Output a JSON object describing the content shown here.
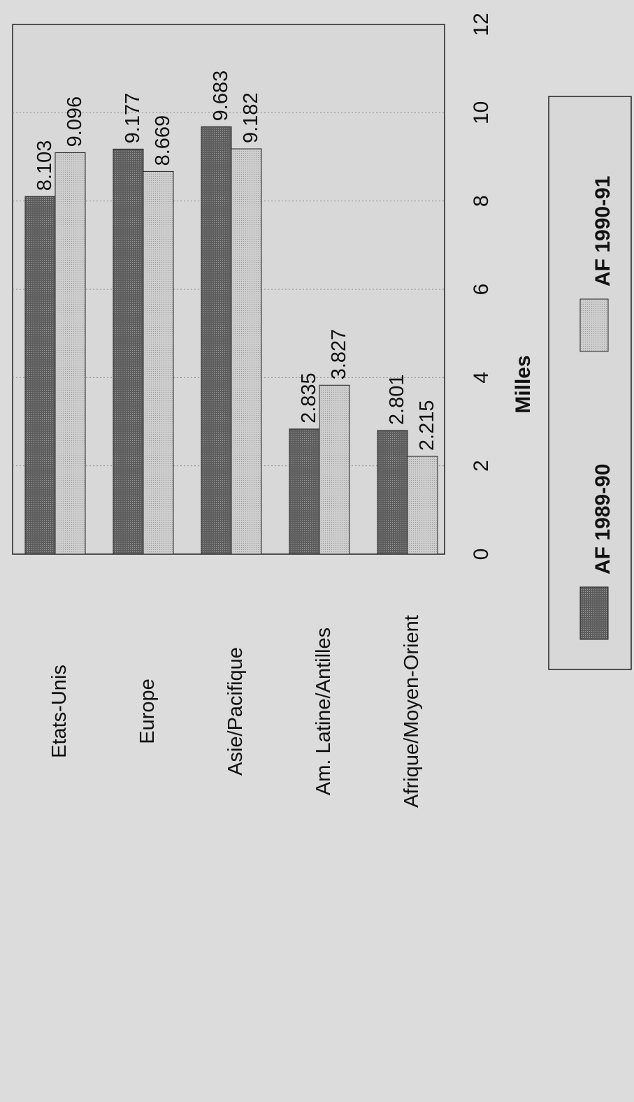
{
  "chart_data": {
    "type": "bar",
    "orientation": "horizontal",
    "categories": [
      "Etats-Unis",
      "Europe",
      "Asie/Pacifique",
      "Am. Latine/Antilles",
      "Afrique/Moyen-Orient"
    ],
    "series": [
      {
        "name": "AF 1989-90",
        "values": [
          8.103,
          9.177,
          9.683,
          2.835,
          2.801
        ],
        "labels": [
          "8.103",
          "9.177",
          "9.683",
          "2.835",
          "2.801"
        ],
        "color": "#666666"
      },
      {
        "name": "AF 1990-91",
        "values": [
          9.096,
          8.669,
          9.182,
          3.827,
          2.215
        ],
        "labels": [
          "9.096",
          "8.669",
          "9.182",
          "3.827",
          "2.215"
        ],
        "color": "#c4c4c4"
      }
    ],
    "xlabel": "Milles",
    "xlim": [
      0,
      12
    ],
    "xticks": [
      "0",
      "2",
      "4",
      "6",
      "8",
      "10",
      "12"
    ],
    "grid": true,
    "legend_position": "bottom"
  }
}
